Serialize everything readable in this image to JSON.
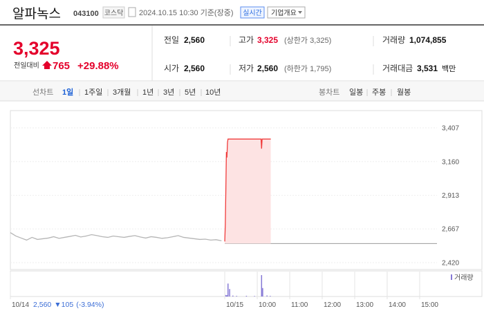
{
  "header": {
    "name": "알파녹스",
    "code": "043100",
    "market": "코스닥",
    "time": "2024.10.15 10:30 기준(장중)",
    "realtime_button": "실시간",
    "company_button": "기업개요"
  },
  "quote": {
    "price": "3,325",
    "change_label": "전일대비",
    "change": "765",
    "rate": "+29.88%"
  },
  "summary": {
    "rows": [
      [
        {
          "label": "전일",
          "value": "2,560"
        },
        {
          "label": "고가",
          "value": "3,325",
          "note": "(상한가 3,325)"
        },
        {
          "label": "거래량",
          "value": "1,074,855"
        }
      ],
      [
        {
          "label": "시가",
          "value": "2,560"
        },
        {
          "label": "저가",
          "value": "2,560",
          "note": "(하한가 1,795)"
        },
        {
          "label": "거래대금",
          "value": "3,531",
          "unit": "백만"
        }
      ]
    ]
  },
  "tabs": {
    "line_label": "선차트",
    "line": [
      "1일",
      "1주일",
      "3개월",
      "1년",
      "3년",
      "5년",
      "10년"
    ],
    "candle_label": "봉차트",
    "candle": [
      "일봉",
      "주봉",
      "월봉"
    ]
  },
  "chart_data": {
    "type": "line",
    "xlim": [
      -396,
      392
    ],
    "xticks": [
      {
        "value": -396,
        "label": "10/14"
      },
      {
        "value": 0,
        "label": "10/15"
      },
      {
        "value": 60,
        "label": "10:00"
      },
      {
        "value": 120,
        "label": "11:00"
      },
      {
        "value": 180,
        "label": "12:00"
      },
      {
        "value": 240,
        "label": "13:00"
      },
      {
        "value": 300,
        "label": "14:00"
      },
      {
        "value": 360,
        "label": "15:00"
      }
    ],
    "ylim": [
      2420,
      3407
    ],
    "yticks": [
      {
        "value": 2420,
        "label": "2,420"
      },
      {
        "value": 2667,
        "label": "2,667"
      },
      {
        "value": 2913,
        "label": "2,913"
      },
      {
        "value": 3160,
        "label": "3,160"
      },
      {
        "value": 3407,
        "label": "3,407"
      }
    ],
    "grid": true,
    "reference_line": 2560,
    "series": [
      {
        "color": "#b5b5b5",
        "x": [
          -396,
          -386,
          -376,
          -366,
          -356,
          -346,
          -336,
          -326,
          -316,
          -306,
          -296,
          -286,
          -276,
          -266,
          -256,
          -246,
          -236,
          -226,
          -216,
          -206,
          -196,
          -186,
          -176,
          -166,
          -156,
          -146,
          -136,
          -126,
          -116,
          -106,
          -96,
          -86,
          -76,
          -66,
          -56,
          -46,
          -36,
          -26,
          -16,
          -6
        ],
        "values": [
          2640,
          2615,
          2600,
          2585,
          2605,
          2590,
          2595,
          2600,
          2610,
          2598,
          2605,
          2612,
          2620,
          2608,
          2615,
          2625,
          2618,
          2610,
          2605,
          2615,
          2610,
          2605,
          2612,
          2618,
          2608,
          2600,
          2610,
          2605,
          2598,
          2602,
          2610,
          2618,
          2605,
          2600,
          2595,
          2590,
          2592,
          2585,
          2588,
          2580
        ]
      },
      {
        "color": "#f03b3b",
        "area_color": "#fde3e3",
        "x": [
          0,
          1,
          2,
          3,
          4,
          5,
          6,
          60,
          67,
          68,
          69,
          85
        ],
        "values": [
          2575,
          2700,
          2950,
          3230,
          3190,
          3300,
          3325,
          3325,
          3325,
          3255,
          3325,
          3325
        ]
      }
    ],
    "volume": {
      "name": "거래량",
      "color": "#8578d6",
      "ylim": [
        0,
        250000
      ],
      "x": [
        2,
        3,
        4,
        6,
        9,
        15,
        22,
        40,
        55,
        68,
        70,
        78,
        84
      ],
      "values": [
        15000,
        8000,
        12000,
        130000,
        75000,
        9000,
        6000,
        7000,
        5000,
        215000,
        85000,
        10000,
        6000
      ]
    }
  },
  "footer_quote": {
    "price": "2,560",
    "change": "▼105",
    "rate": "(-3.94%)"
  }
}
